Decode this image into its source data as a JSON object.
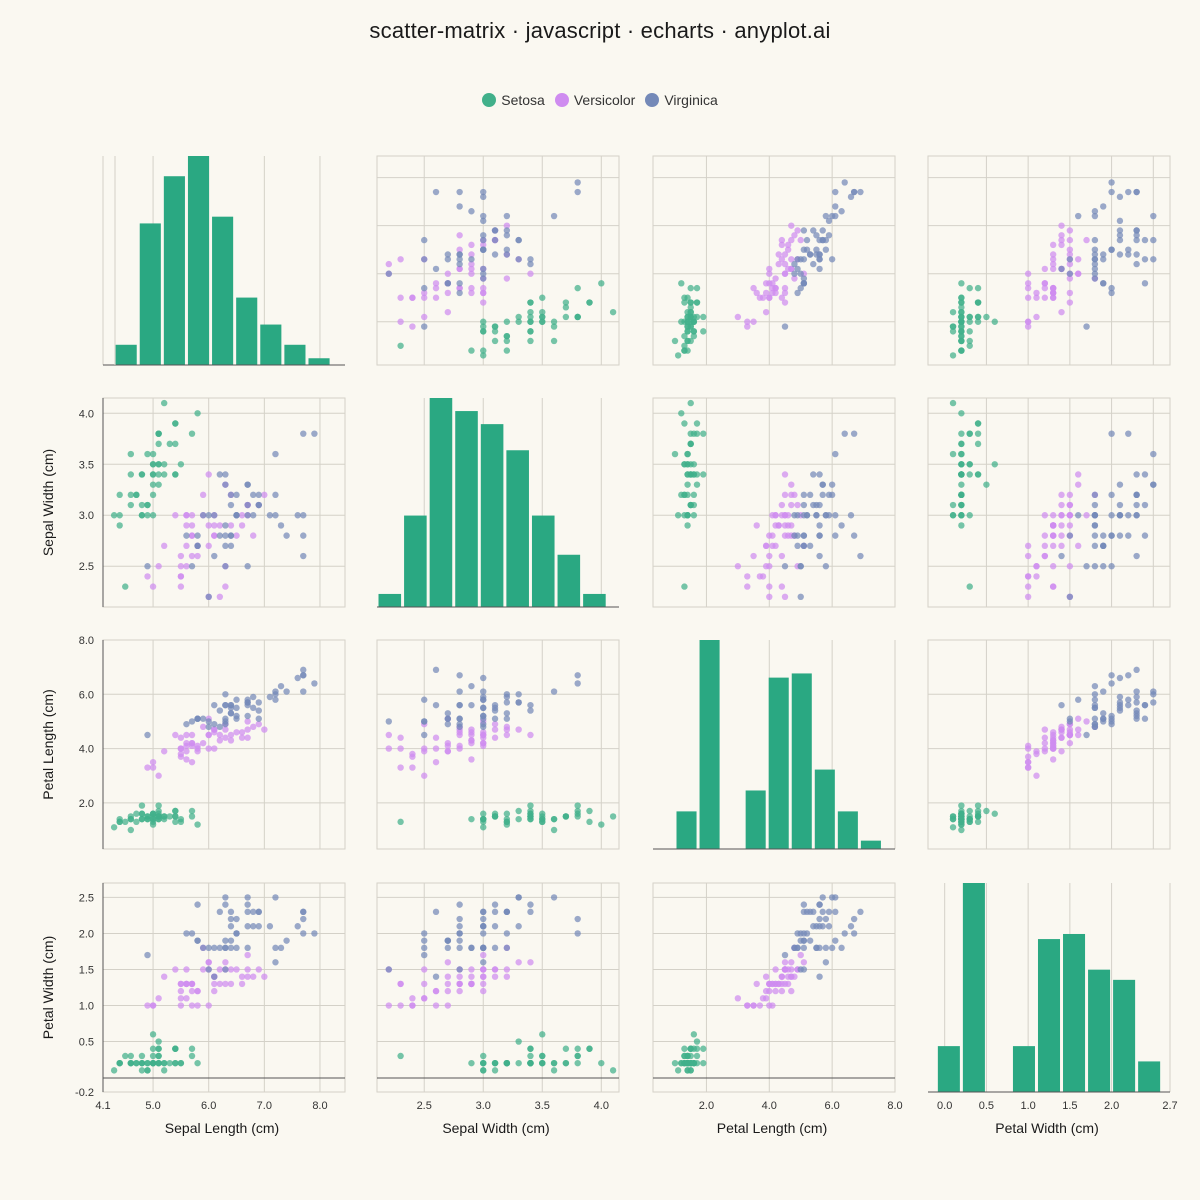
{
  "title": "scatter-matrix · javascript · echarts · anyplot.ai",
  "legend": [
    {
      "name": "Setosa",
      "color": "#41b08a"
    },
    {
      "name": "Versicolor",
      "color": "#cf8cf0"
    },
    {
      "name": "Virginica",
      "color": "#7489b8"
    }
  ],
  "chart_data": {
    "type": "scatter",
    "variables": [
      "Sepal Length (cm)",
      "Sepal Width (cm)",
      "Petal Length (cm)",
      "Petal Width (cm)"
    ],
    "ranges": [
      [
        4.1,
        8.45
      ],
      [
        2.1,
        4.15
      ],
      [
        0.3,
        8.0
      ],
      [
        -0.2,
        2.7
      ]
    ],
    "ticks": [
      [
        4.1,
        5.0,
        6.0,
        7.0,
        8.0
      ],
      [
        2.5,
        3.0,
        3.5,
        4.0
      ],
      [
        2.0,
        4.0,
        6.0,
        8.0
      ],
      [
        -0.2,
        0.5,
        1.0,
        1.5,
        2.0,
        2.5
      ]
    ],
    "x_tick_labels": [
      [
        "4.1",
        "5.0",
        "6.0",
        "7.0",
        "8.0"
      ],
      [
        "2.5",
        "3.0",
        "3.5",
        "4.0"
      ],
      [
        "2.0",
        "4.0",
        "6.0",
        "8.0"
      ],
      [
        "0.0",
        "0.5",
        "1.0",
        "1.5",
        "2.0",
        "2.7"
      ]
    ],
    "x_tick_values_pw": [
      0.0,
      0.5,
      1.0,
      1.5,
      2.0,
      2.7
    ],
    "y_tick_labels": [
      [],
      [
        "2.5",
        "3.0",
        "3.5",
        "4.0"
      ],
      [
        "2.0",
        "4.0",
        "6.0",
        "8.0"
      ],
      [
        "-0.2",
        "0.5",
        "1.0",
        "1.5",
        "2.0",
        "2.5"
      ]
    ],
    "histograms": [
      {
        "x_min": 4.3,
        "x_max": 8.2,
        "counts": [
          3,
          21,
          28,
          31,
          22,
          10,
          6,
          3,
          1
        ]
      },
      {
        "x_min": 2.1,
        "x_max": 4.05,
        "counts": [
          1,
          7,
          16,
          15,
          14,
          12,
          7,
          4,
          1
        ]
      },
      {
        "x_min": 1.0,
        "x_max": 7.6,
        "counts": [
          9,
          50,
          0,
          14,
          41,
          42,
          19,
          9,
          2
        ]
      },
      {
        "x_min": -0.1,
        "x_max": 2.6,
        "counts": [
          9,
          41,
          0,
          9,
          30,
          31,
          24,
          22,
          6
        ]
      }
    ],
    "series": [
      {
        "name": "Setosa",
        "points": [
          [
            5.1,
            3.5,
            1.4,
            0.2
          ],
          [
            4.9,
            3.0,
            1.4,
            0.2
          ],
          [
            4.7,
            3.2,
            1.3,
            0.2
          ],
          [
            4.6,
            3.1,
            1.5,
            0.2
          ],
          [
            5.0,
            3.6,
            1.4,
            0.2
          ],
          [
            5.4,
            3.9,
            1.7,
            0.4
          ],
          [
            4.6,
            3.4,
            1.4,
            0.3
          ],
          [
            5.0,
            3.4,
            1.5,
            0.2
          ],
          [
            4.4,
            2.9,
            1.4,
            0.2
          ],
          [
            4.9,
            3.1,
            1.5,
            0.1
          ],
          [
            5.4,
            3.7,
            1.5,
            0.2
          ],
          [
            4.8,
            3.4,
            1.6,
            0.2
          ],
          [
            4.8,
            3.0,
            1.4,
            0.1
          ],
          [
            4.3,
            3.0,
            1.1,
            0.1
          ],
          [
            5.8,
            4.0,
            1.2,
            0.2
          ],
          [
            5.7,
            4.4,
            1.5,
            0.4
          ],
          [
            5.4,
            3.9,
            1.3,
            0.4
          ],
          [
            5.1,
            3.5,
            1.4,
            0.3
          ],
          [
            5.7,
            3.8,
            1.7,
            0.3
          ],
          [
            5.1,
            3.8,
            1.5,
            0.3
          ],
          [
            5.4,
            3.4,
            1.7,
            0.2
          ],
          [
            5.1,
            3.7,
            1.5,
            0.4
          ],
          [
            4.6,
            3.6,
            1.0,
            0.2
          ],
          [
            5.1,
            3.3,
            1.7,
            0.5
          ],
          [
            4.8,
            3.4,
            1.9,
            0.2
          ],
          [
            5.0,
            3.0,
            1.6,
            0.2
          ],
          [
            5.0,
            3.4,
            1.6,
            0.4
          ],
          [
            5.2,
            3.5,
            1.5,
            0.2
          ],
          [
            5.2,
            3.4,
            1.4,
            0.2
          ],
          [
            4.7,
            3.2,
            1.6,
            0.2
          ],
          [
            4.8,
            3.1,
            1.6,
            0.2
          ],
          [
            5.4,
            3.4,
            1.5,
            0.4
          ],
          [
            5.2,
            4.1,
            1.5,
            0.1
          ],
          [
            5.5,
            4.2,
            1.4,
            0.2
          ],
          [
            4.9,
            3.1,
            1.5,
            0.2
          ],
          [
            5.0,
            3.2,
            1.2,
            0.2
          ],
          [
            5.5,
            3.5,
            1.3,
            0.2
          ],
          [
            4.9,
            3.6,
            1.4,
            0.1
          ],
          [
            4.4,
            3.0,
            1.3,
            0.2
          ],
          [
            5.1,
            3.4,
            1.5,
            0.2
          ],
          [
            5.0,
            3.5,
            1.3,
            0.3
          ],
          [
            4.5,
            2.3,
            1.3,
            0.3
          ],
          [
            4.4,
            3.2,
            1.3,
            0.2
          ],
          [
            5.0,
            3.5,
            1.6,
            0.6
          ],
          [
            5.1,
            3.8,
            1.9,
            0.4
          ],
          [
            4.8,
            3.0,
            1.4,
            0.3
          ],
          [
            5.1,
            3.8,
            1.6,
            0.2
          ],
          [
            4.6,
            3.2,
            1.4,
            0.2
          ],
          [
            5.3,
            3.7,
            1.5,
            0.2
          ],
          [
            5.0,
            3.3,
            1.4,
            0.2
          ]
        ]
      },
      {
        "name": "Versicolor",
        "points": [
          [
            7.0,
            3.2,
            4.7,
            1.4
          ],
          [
            6.4,
            3.2,
            4.5,
            1.5
          ],
          [
            6.9,
            3.1,
            4.9,
            1.5
          ],
          [
            5.5,
            2.3,
            4.0,
            1.3
          ],
          [
            6.5,
            2.8,
            4.6,
            1.5
          ],
          [
            5.7,
            2.8,
            4.5,
            1.3
          ],
          [
            6.3,
            3.3,
            4.7,
            1.6
          ],
          [
            4.9,
            2.4,
            3.3,
            1.0
          ],
          [
            6.6,
            2.9,
            4.6,
            1.3
          ],
          [
            5.2,
            2.7,
            3.9,
            1.4
          ],
          [
            5.0,
            2.0,
            3.5,
            1.0
          ],
          [
            5.9,
            3.0,
            4.2,
            1.5
          ],
          [
            6.0,
            2.2,
            4.0,
            1.0
          ],
          [
            6.1,
            2.9,
            4.7,
            1.4
          ],
          [
            5.6,
            2.9,
            3.6,
            1.3
          ],
          [
            6.7,
            3.1,
            4.4,
            1.4
          ],
          [
            5.6,
            3.0,
            4.5,
            1.5
          ],
          [
            5.8,
            2.7,
            4.1,
            1.0
          ],
          [
            6.2,
            2.2,
            4.5,
            1.5
          ],
          [
            5.6,
            2.5,
            3.9,
            1.1
          ],
          [
            5.9,
            3.2,
            4.8,
            1.8
          ],
          [
            6.1,
            2.8,
            4.0,
            1.3
          ],
          [
            6.3,
            2.5,
            4.9,
            1.5
          ],
          [
            6.1,
            2.8,
            4.7,
            1.2
          ],
          [
            6.4,
            2.9,
            4.3,
            1.3
          ],
          [
            6.6,
            3.0,
            4.4,
            1.4
          ],
          [
            6.8,
            2.8,
            4.8,
            1.4
          ],
          [
            6.7,
            3.0,
            5.0,
            1.7
          ],
          [
            6.0,
            2.9,
            4.5,
            1.5
          ],
          [
            5.7,
            2.6,
            3.5,
            1.0
          ],
          [
            5.5,
            2.4,
            3.8,
            1.1
          ],
          [
            5.5,
            2.4,
            3.7,
            1.0
          ],
          [
            5.8,
            2.7,
            3.9,
            1.2
          ],
          [
            6.0,
            2.7,
            5.1,
            1.6
          ],
          [
            5.4,
            3.0,
            4.5,
            1.5
          ],
          [
            6.0,
            3.4,
            4.5,
            1.6
          ],
          [
            6.7,
            3.1,
            4.7,
            1.5
          ],
          [
            6.3,
            2.3,
            4.4,
            1.3
          ],
          [
            5.6,
            3.0,
            4.1,
            1.3
          ],
          [
            5.5,
            2.5,
            4.0,
            1.3
          ],
          [
            5.5,
            2.6,
            4.4,
            1.2
          ],
          [
            6.1,
            3.0,
            4.6,
            1.4
          ],
          [
            5.8,
            2.6,
            4.0,
            1.2
          ],
          [
            5.0,
            2.3,
            3.3,
            1.0
          ],
          [
            5.6,
            2.7,
            4.2,
            1.3
          ],
          [
            5.7,
            3.0,
            4.2,
            1.2
          ],
          [
            5.7,
            2.9,
            4.2,
            1.3
          ],
          [
            6.2,
            2.9,
            4.3,
            1.3
          ],
          [
            5.1,
            2.5,
            3.0,
            1.1
          ],
          [
            5.7,
            2.8,
            4.1,
            1.3
          ]
        ]
      },
      {
        "name": "Virginica",
        "points": [
          [
            6.3,
            3.3,
            6.0,
            2.5
          ],
          [
            5.8,
            2.7,
            5.1,
            1.9
          ],
          [
            7.1,
            3.0,
            5.9,
            2.1
          ],
          [
            6.3,
            2.9,
            5.6,
            1.8
          ],
          [
            6.5,
            3.0,
            5.8,
            2.2
          ],
          [
            7.6,
            3.0,
            6.6,
            2.1
          ],
          [
            4.9,
            2.5,
            4.5,
            1.7
          ],
          [
            7.3,
            2.9,
            6.3,
            1.8
          ],
          [
            6.7,
            2.5,
            5.8,
            1.8
          ],
          [
            7.2,
            3.6,
            6.1,
            2.5
          ],
          [
            6.5,
            3.2,
            5.1,
            2.0
          ],
          [
            6.4,
            2.7,
            5.3,
            1.9
          ],
          [
            6.8,
            3.0,
            5.5,
            2.1
          ],
          [
            5.7,
            2.5,
            5.0,
            2.0
          ],
          [
            5.8,
            2.8,
            5.1,
            2.4
          ],
          [
            6.4,
            3.2,
            5.3,
            2.3
          ],
          [
            6.5,
            3.0,
            5.5,
            1.8
          ],
          [
            7.7,
            3.8,
            6.7,
            2.2
          ],
          [
            7.7,
            2.6,
            6.9,
            2.3
          ],
          [
            6.0,
            2.2,
            5.0,
            1.5
          ],
          [
            6.9,
            3.2,
            5.7,
            2.3
          ],
          [
            5.6,
            2.8,
            4.9,
            2.0
          ],
          [
            7.7,
            2.8,
            6.7,
            2.0
          ],
          [
            6.3,
            2.7,
            4.9,
            1.8
          ],
          [
            6.7,
            3.3,
            5.7,
            2.1
          ],
          [
            7.2,
            3.2,
            6.0,
            1.8
          ],
          [
            6.2,
            2.8,
            4.8,
            1.8
          ],
          [
            6.1,
            3.0,
            4.9,
            1.8
          ],
          [
            6.4,
            2.8,
            5.6,
            2.1
          ],
          [
            7.2,
            3.0,
            5.8,
            1.6
          ],
          [
            7.4,
            2.8,
            6.1,
            1.9
          ],
          [
            7.9,
            3.8,
            6.4,
            2.0
          ],
          [
            6.4,
            2.8,
            5.6,
            2.2
          ],
          [
            6.3,
            2.8,
            5.1,
            1.5
          ],
          [
            6.1,
            2.6,
            5.6,
            1.4
          ],
          [
            7.7,
            3.0,
            6.1,
            2.3
          ],
          [
            6.3,
            3.4,
            5.6,
            2.4
          ],
          [
            6.4,
            3.1,
            5.5,
            1.8
          ],
          [
            6.0,
            3.0,
            4.8,
            1.8
          ],
          [
            6.9,
            3.1,
            5.4,
            2.1
          ],
          [
            6.7,
            3.1,
            5.6,
            2.4
          ],
          [
            6.9,
            3.1,
            5.1,
            2.3
          ],
          [
            5.8,
            2.7,
            5.1,
            1.9
          ],
          [
            6.8,
            3.2,
            5.9,
            2.3
          ],
          [
            6.7,
            3.3,
            5.7,
            2.5
          ],
          [
            6.7,
            3.0,
            5.2,
            2.3
          ],
          [
            6.3,
            2.5,
            5.0,
            1.9
          ],
          [
            6.5,
            3.0,
            5.2,
            2.0
          ],
          [
            6.2,
            3.4,
            5.4,
            2.3
          ],
          [
            5.9,
            3.0,
            5.1,
            1.8
          ]
        ]
      }
    ],
    "histogram_color": "#2aa882",
    "grid": true,
    "legend_position": "top-center"
  }
}
